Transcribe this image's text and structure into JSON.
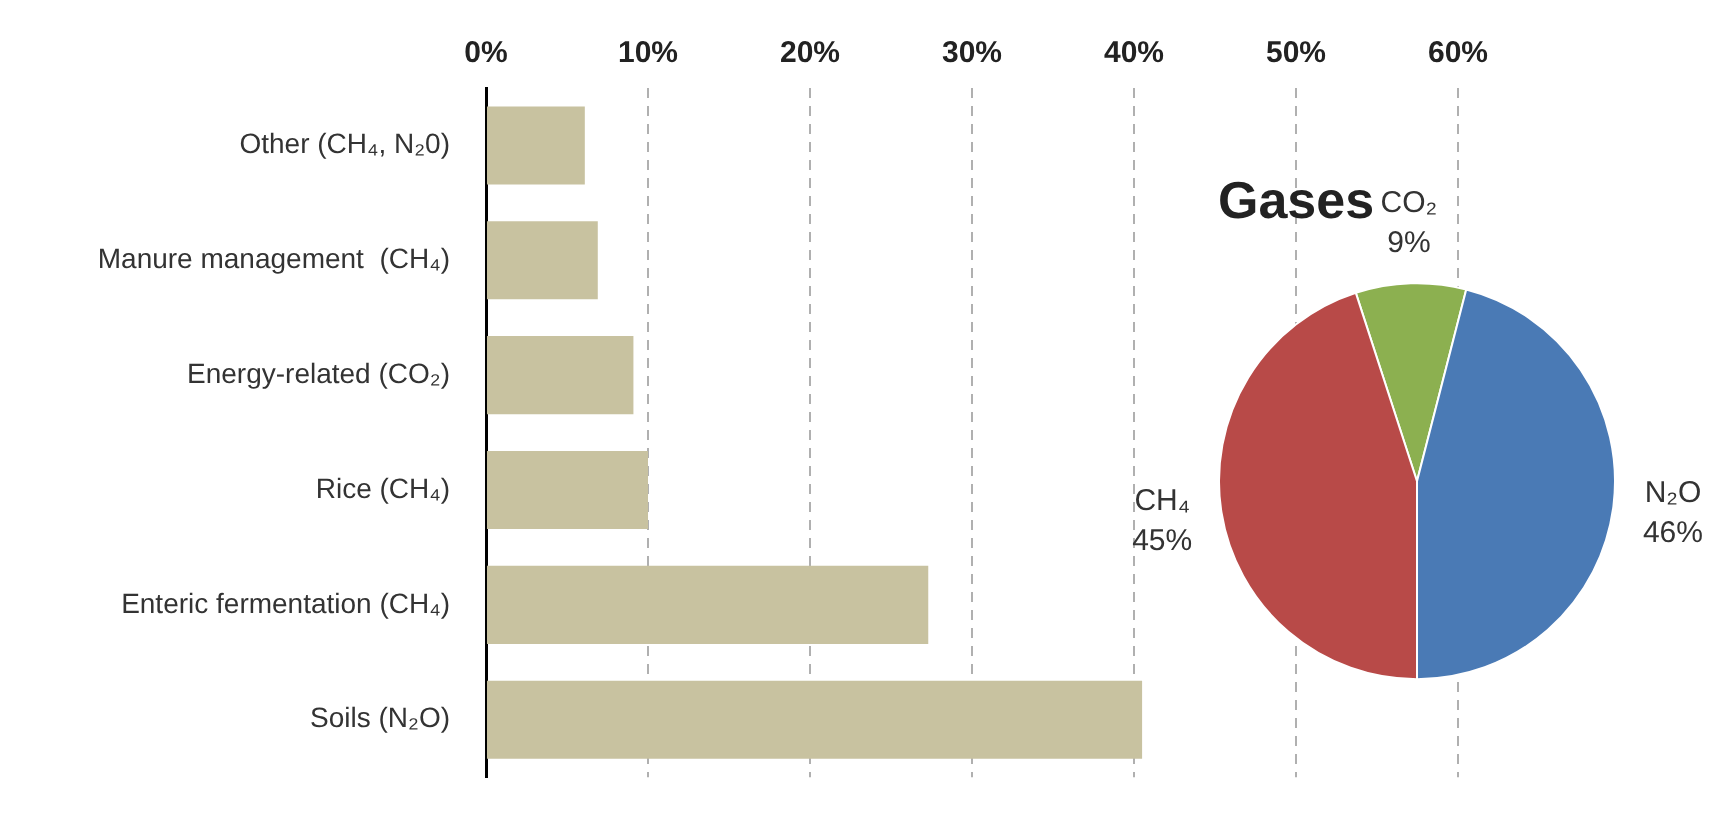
{
  "chart_data": [
    {
      "type": "bar",
      "orientation": "horizontal",
      "categories": [
        "Other (CH₄, N₂0)",
        "Manure management  (CH₄)",
        "Energy-related (CO₂)",
        "Rice (CH₄)",
        "Enteric fermentation (CH₄)",
        "Soils (N₂O)"
      ],
      "values": [
        6.1,
        6.9,
        9.1,
        10,
        27.3,
        40.5
      ],
      "color": "#c8c2a0",
      "xlim": [
        0,
        60
      ],
      "xticks": [
        {
          "value": 0,
          "label": "0%"
        },
        {
          "value": 10,
          "label": "10%"
        },
        {
          "value": 20,
          "label": "20%"
        },
        {
          "value": 30,
          "label": "30%"
        },
        {
          "value": 40,
          "label": "40%"
        },
        {
          "value": 50,
          "label": "50%"
        },
        {
          "value": 60,
          "label": "60%"
        }
      ],
      "grid": "x",
      "legend": false
    },
    {
      "type": "pie",
      "title": "Gases",
      "categories": [
        "CO₂",
        "N₂O",
        "CH₄"
      ],
      "values": [
        9,
        46,
        45
      ],
      "value_labels": [
        "9%",
        "46%",
        "45%"
      ],
      "colors": [
        "#8cb050",
        "#4a7ab5",
        "#b84a48"
      ],
      "legend": false
    }
  ]
}
